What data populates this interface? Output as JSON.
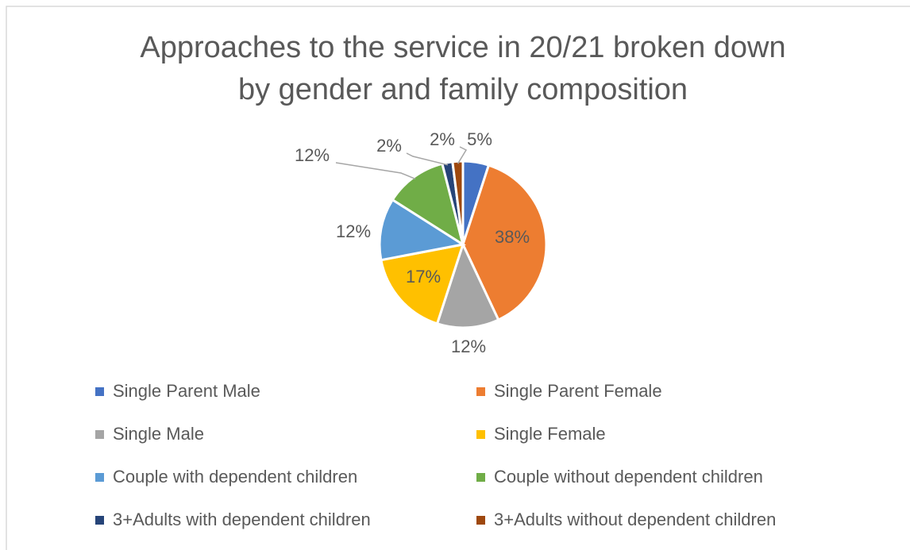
{
  "chart_data": {
    "type": "pie",
    "title": "Approaches to the service in 20/21 broken down by gender and family composition",
    "categories": [
      "Single Parent Male",
      "Single Parent Female",
      "Single Male",
      "Single Female",
      "Couple with dependent children",
      "Couple without dependent children",
      "3+Adults with dependent children",
      "3+Adults without dependent children"
    ],
    "values": [
      5,
      38,
      12,
      17,
      12,
      12,
      2,
      2
    ],
    "value_labels": [
      "5%",
      "38%",
      "12%",
      "17%",
      "12%",
      "12%",
      "2%",
      "2%"
    ],
    "colors": [
      "#4472c4",
      "#ed7d31",
      "#a5a5a5",
      "#ffc000",
      "#5b9bd5",
      "#70ad47",
      "#264478",
      "#9e480e"
    ],
    "legend": "bottom"
  }
}
